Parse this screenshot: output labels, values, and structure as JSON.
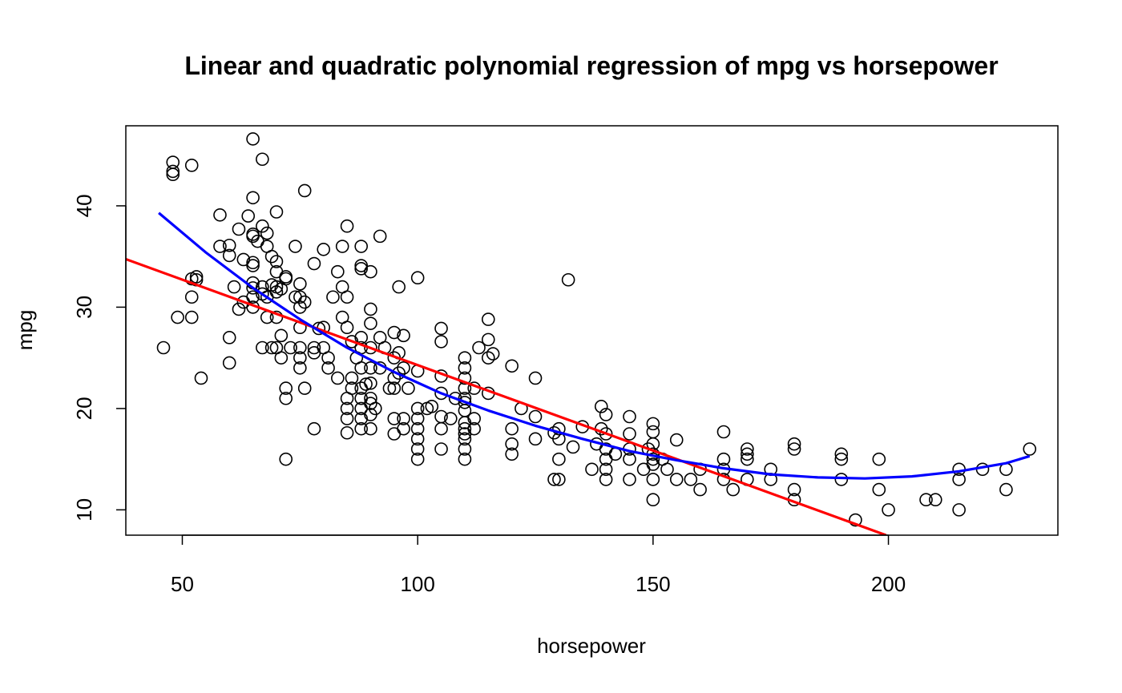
{
  "chart_data": {
    "type": "scatter",
    "title": "Linear and quadratic polynomial regression of mpg vs horsepower",
    "xlabel": "horsepower",
    "ylabel": "mpg",
    "xlim": [
      38,
      236
    ],
    "ylim": [
      7.5,
      47.9
    ],
    "grid": false,
    "xticks": [
      50,
      100,
      150,
      200
    ],
    "yticks": [
      10,
      20,
      30,
      40
    ],
    "colors": {
      "points": "#000000",
      "linear": "#ff0000",
      "quadratic": "#0000ff"
    },
    "points": [
      [
        46,
        26
      ],
      [
        48,
        43.1
      ],
      [
        48,
        43.4
      ],
      [
        48,
        44.3
      ],
      [
        49,
        29
      ],
      [
        52,
        44
      ],
      [
        52,
        32.8
      ],
      [
        52,
        31
      ],
      [
        52,
        29
      ],
      [
        53,
        32.7
      ],
      [
        53,
        33
      ],
      [
        54,
        23
      ],
      [
        58,
        39.1
      ],
      [
        58,
        36
      ],
      [
        60,
        36.1
      ],
      [
        60,
        35.1
      ],
      [
        60,
        27
      ],
      [
        60,
        24.5
      ],
      [
        61,
        32
      ],
      [
        62,
        29.8
      ],
      [
        62,
        37.7
      ],
      [
        63,
        30.5
      ],
      [
        63,
        34.7
      ],
      [
        64,
        39
      ],
      [
        65,
        46.6
      ],
      [
        65,
        37
      ],
      [
        65,
        34.4
      ],
      [
        65,
        37.2
      ],
      [
        65,
        32.4
      ],
      [
        65,
        31.9
      ],
      [
        65,
        34.1
      ],
      [
        65,
        40.8
      ],
      [
        65,
        31
      ],
      [
        65,
        30
      ],
      [
        66,
        36.5
      ],
      [
        67,
        38
      ],
      [
        67,
        31.3
      ],
      [
        67,
        26
      ],
      [
        67,
        44.6
      ],
      [
        67,
        32
      ],
      [
        68,
        29
      ],
      [
        68,
        36
      ],
      [
        68,
        31
      ],
      [
        68,
        37.3
      ],
      [
        69,
        35
      ],
      [
        69,
        32.2
      ],
      [
        69,
        26
      ],
      [
        70,
        31.5
      ],
      [
        70,
        34.5
      ],
      [
        70,
        33.5
      ],
      [
        70,
        32
      ],
      [
        70,
        26
      ],
      [
        70,
        39.4
      ],
      [
        70,
        29
      ],
      [
        71,
        27.2
      ],
      [
        71,
        25
      ],
      [
        71,
        31.8
      ],
      [
        72,
        22
      ],
      [
        72,
        21
      ],
      [
        72,
        15
      ],
      [
        72,
        33
      ],
      [
        72,
        32.8
      ],
      [
        73,
        26
      ],
      [
        74,
        36
      ],
      [
        74,
        31
      ],
      [
        75,
        32.3
      ],
      [
        75,
        31
      ],
      [
        75,
        30
      ],
      [
        75,
        28
      ],
      [
        75,
        26
      ],
      [
        75,
        25
      ],
      [
        75,
        24
      ],
      [
        76,
        41.5
      ],
      [
        76,
        22
      ],
      [
        76,
        30.5
      ],
      [
        78,
        34.3
      ],
      [
        78,
        26
      ],
      [
        78,
        25.5
      ],
      [
        78,
        18
      ],
      [
        79,
        27.9
      ],
      [
        80,
        35.7
      ],
      [
        80,
        28
      ],
      [
        80,
        26
      ],
      [
        81,
        25
      ],
      [
        81,
        24
      ],
      [
        82,
        31
      ],
      [
        83,
        23
      ],
      [
        83,
        33.5
      ],
      [
        84,
        36
      ],
      [
        84,
        32
      ],
      [
        84,
        29
      ],
      [
        85,
        38
      ],
      [
        85,
        28
      ],
      [
        85,
        21
      ],
      [
        85,
        20
      ],
      [
        85,
        19
      ],
      [
        85,
        17.6
      ],
      [
        85,
        31
      ],
      [
        86,
        23
      ],
      [
        86,
        26.6
      ],
      [
        86,
        22
      ],
      [
        87,
        25
      ],
      [
        88,
        33.8
      ],
      [
        88,
        34.1
      ],
      [
        88,
        27
      ],
      [
        88,
        26
      ],
      [
        88,
        24
      ],
      [
        88,
        22
      ],
      [
        88,
        21
      ],
      [
        88,
        20
      ],
      [
        88,
        19
      ],
      [
        88,
        18
      ],
      [
        88,
        36
      ],
      [
        89,
        22.4
      ],
      [
        90,
        33.5
      ],
      [
        90,
        29.8
      ],
      [
        90,
        28.4
      ],
      [
        90,
        26
      ],
      [
        90,
        24
      ],
      [
        90,
        22.5
      ],
      [
        90,
        21
      ],
      [
        90,
        20.5
      ],
      [
        90,
        19.4
      ],
      [
        90,
        18
      ],
      [
        91,
        20
      ],
      [
        92,
        37
      ],
      [
        92,
        27
      ],
      [
        92,
        24
      ],
      [
        93,
        26
      ],
      [
        94,
        22
      ],
      [
        95,
        27.5
      ],
      [
        95,
        25
      ],
      [
        95,
        23
      ],
      [
        95,
        22
      ],
      [
        95,
        19
      ],
      [
        95,
        17.5
      ],
      [
        96,
        32
      ],
      [
        96,
        25.5
      ],
      [
        96,
        23.5
      ],
      [
        97,
        27.2
      ],
      [
        97,
        24
      ],
      [
        97,
        19
      ],
      [
        97,
        18
      ],
      [
        98,
        22
      ],
      [
        100,
        32.9
      ],
      [
        100,
        23.7
      ],
      [
        100,
        20
      ],
      [
        100,
        19
      ],
      [
        100,
        18
      ],
      [
        100,
        17
      ],
      [
        100,
        16
      ],
      [
        100,
        15
      ],
      [
        102,
        20
      ],
      [
        103,
        20.2
      ],
      [
        105,
        27.9
      ],
      [
        105,
        26.6
      ],
      [
        105,
        23.2
      ],
      [
        105,
        21.5
      ],
      [
        105,
        19.2
      ],
      [
        105,
        18
      ],
      [
        105,
        16
      ],
      [
        107,
        19
      ],
      [
        108,
        21
      ],
      [
        110,
        25
      ],
      [
        110,
        24
      ],
      [
        110,
        23
      ],
      [
        110,
        22
      ],
      [
        110,
        21
      ],
      [
        110,
        20.6
      ],
      [
        110,
        19.8
      ],
      [
        110,
        18.6
      ],
      [
        110,
        18
      ],
      [
        110,
        17.5
      ],
      [
        110,
        17
      ],
      [
        110,
        16
      ],
      [
        110,
        15
      ],
      [
        112,
        22
      ],
      [
        112,
        19
      ],
      [
        112,
        18
      ],
      [
        113,
        26
      ],
      [
        115,
        28.8
      ],
      [
        115,
        26.8
      ],
      [
        115,
        25
      ],
      [
        115,
        21.5
      ],
      [
        116,
        25.4
      ],
      [
        120,
        24.2
      ],
      [
        120,
        18
      ],
      [
        120,
        16.5
      ],
      [
        120,
        15.5
      ],
      [
        122,
        20
      ],
      [
        125,
        23
      ],
      [
        125,
        19.2
      ],
      [
        125,
        17
      ],
      [
        129,
        17.6
      ],
      [
        129,
        13
      ],
      [
        130,
        18
      ],
      [
        130,
        17
      ],
      [
        130,
        15
      ],
      [
        130,
        13
      ],
      [
        132,
        32.7
      ],
      [
        133,
        16.2
      ],
      [
        135,
        18.2
      ],
      [
        137,
        14
      ],
      [
        138,
        16.5
      ],
      [
        139,
        20.2
      ],
      [
        139,
        18
      ],
      [
        140,
        19.4
      ],
      [
        140,
        17.5
      ],
      [
        140,
        16
      ],
      [
        140,
        15
      ],
      [
        140,
        14
      ],
      [
        140,
        13
      ],
      [
        142,
        15.5
      ],
      [
        145,
        19.2
      ],
      [
        145,
        17.5
      ],
      [
        145,
        16
      ],
      [
        145,
        15
      ],
      [
        145,
        13
      ],
      [
        148,
        14
      ],
      [
        149,
        16
      ],
      [
        150,
        18.5
      ],
      [
        150,
        17.7
      ],
      [
        150,
        16.5
      ],
      [
        150,
        15.5
      ],
      [
        150,
        15
      ],
      [
        150,
        14.5
      ],
      [
        150,
        13
      ],
      [
        150,
        11
      ],
      [
        152,
        15
      ],
      [
        153,
        14
      ],
      [
        155,
        16.9
      ],
      [
        155,
        13
      ],
      [
        158,
        13
      ],
      [
        160,
        14
      ],
      [
        160,
        12
      ],
      [
        165,
        17.7
      ],
      [
        165,
        15
      ],
      [
        165,
        14
      ],
      [
        165,
        13
      ],
      [
        167,
        12
      ],
      [
        170,
        16
      ],
      [
        170,
        15.5
      ],
      [
        170,
        15
      ],
      [
        170,
        13
      ],
      [
        175,
        14
      ],
      [
        175,
        13
      ],
      [
        180,
        16.5
      ],
      [
        180,
        16
      ],
      [
        180,
        12
      ],
      [
        180,
        11
      ],
      [
        190,
        15.5
      ],
      [
        190,
        15
      ],
      [
        190,
        13
      ],
      [
        193,
        9
      ],
      [
        198,
        15
      ],
      [
        198,
        12
      ],
      [
        200,
        10
      ],
      [
        208,
        11
      ],
      [
        210,
        11
      ],
      [
        215,
        14
      ],
      [
        215,
        13
      ],
      [
        215,
        10
      ],
      [
        220,
        14
      ],
      [
        225,
        14
      ],
      [
        225,
        12
      ],
      [
        230,
        16
      ]
    ],
    "series": [
      {
        "type": "line",
        "color": "#ff0000",
        "x": [
          38,
          199.5
        ],
        "y": [
          34.74,
          7.5
        ]
      },
      {
        "type": "line",
        "color": "#0000ff",
        "x": [
          45,
          55,
          65,
          75,
          85,
          95,
          105,
          115,
          125,
          135,
          145,
          155,
          165,
          175,
          185,
          195,
          205,
          215,
          225,
          230
        ],
        "y": [
          39.3,
          35.4,
          31.9,
          28.8,
          26.0,
          23.6,
          21.5,
          19.8,
          18.3,
          17.0,
          15.8,
          14.9,
          14.1,
          13.5,
          13.2,
          13.1,
          13.3,
          13.8,
          14.6,
          15.3
        ]
      }
    ]
  }
}
